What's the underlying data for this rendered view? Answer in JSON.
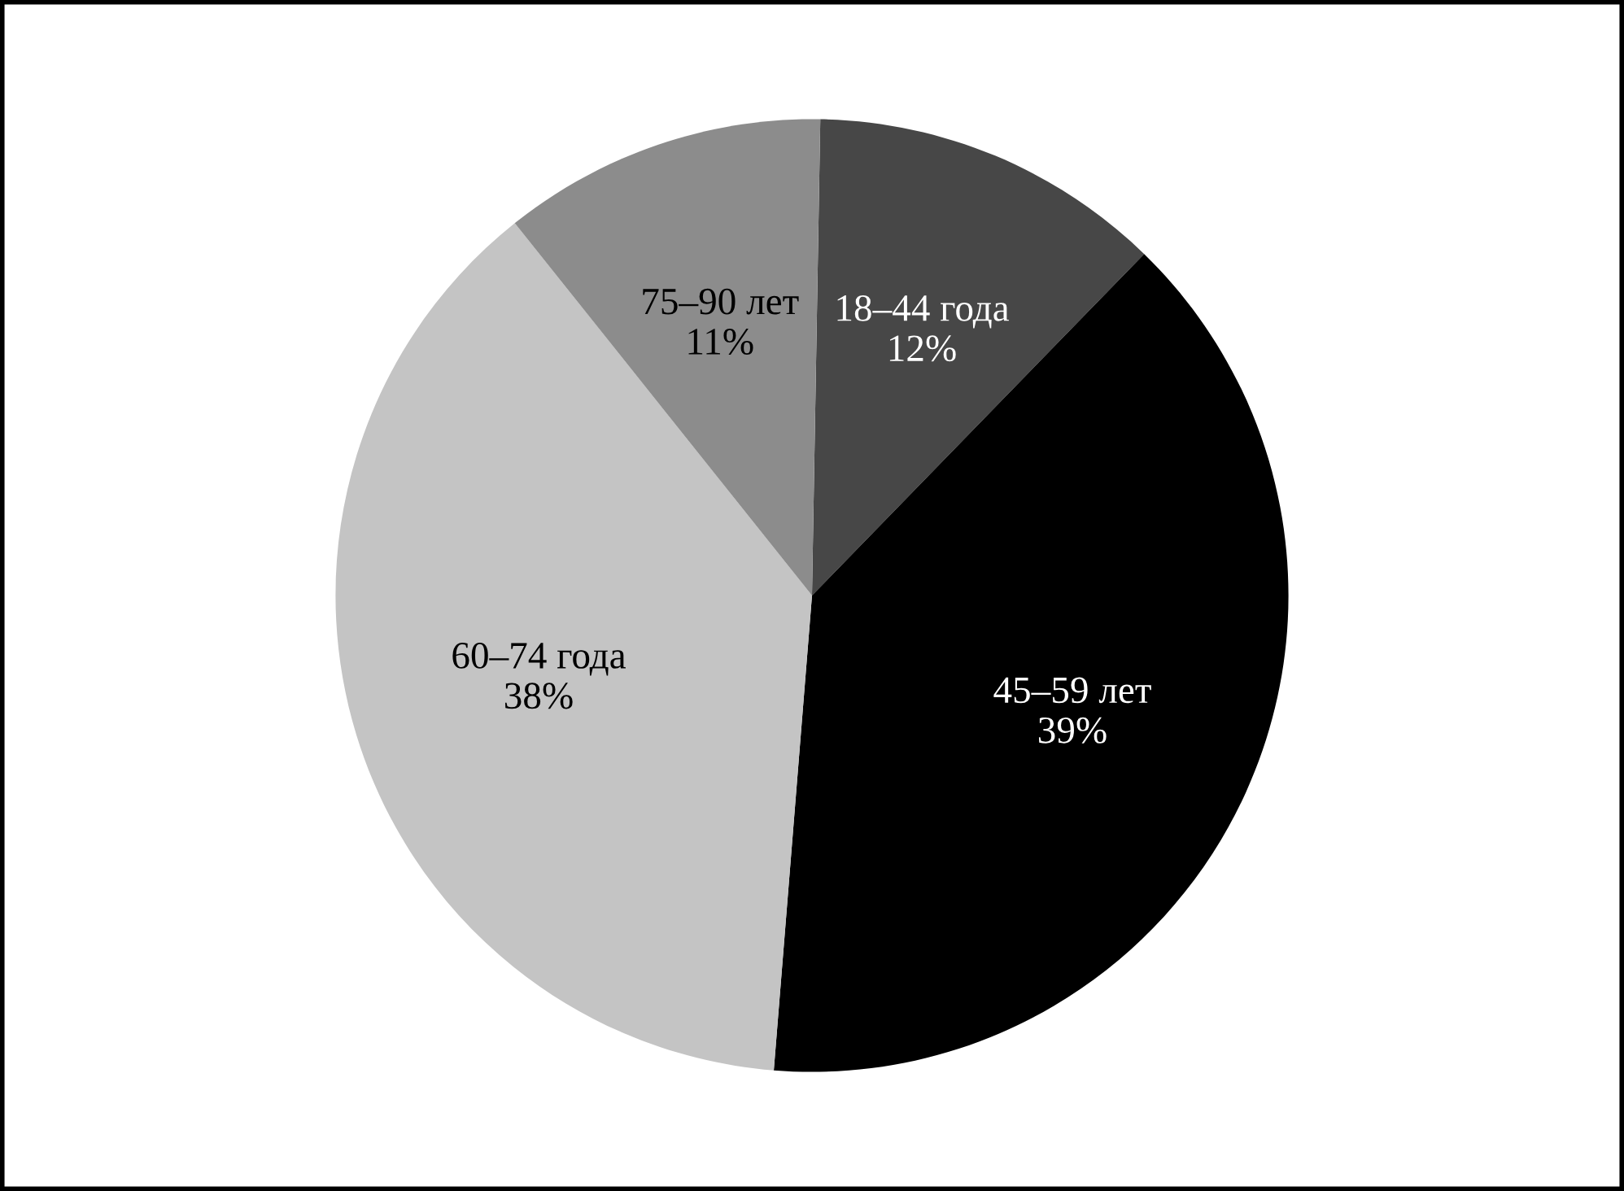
{
  "chart_data": {
    "type": "pie",
    "categories": [
      "18–44 года",
      "45–59 лет",
      "60–74 года",
      "75–90 лет"
    ],
    "values": [
      12,
      39,
      38,
      11
    ],
    "value_labels": [
      "12%",
      "39%",
      "38%",
      "11%"
    ],
    "colors": [
      "#474747",
      "#000000",
      "#c4c4c4",
      "#8c8c8c"
    ]
  }
}
